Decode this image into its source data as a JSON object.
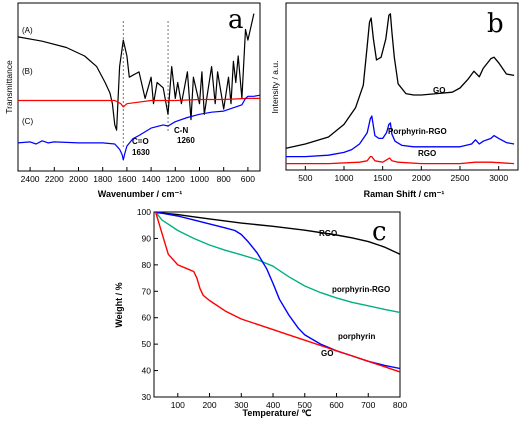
{
  "chart_data": [
    {
      "panel": "a",
      "type": "line",
      "xlabel": "Wavenumber / cm⁻¹",
      "ylabel": "Transmittance",
      "xlim": [
        2500,
        500
      ],
      "x_ticks": [
        2400,
        2200,
        2000,
        1800,
        1600,
        1400,
        1200,
        1000,
        800,
        600
      ],
      "annotations": [
        "C=O",
        "1630",
        "C-N",
        "1260"
      ],
      "series": [
        {
          "name": "(A)",
          "color": "#000000",
          "x": [
            2500,
            2300,
            2100,
            1950,
            1850,
            1780,
            1740,
            1720,
            1700,
            1685,
            1660,
            1630,
            1600,
            1580,
            1500,
            1450,
            1400,
            1380,
            1350,
            1300,
            1260,
            1230,
            1200,
            1180,
            1150,
            1100,
            1070,
            1050,
            1000,
            980,
            960,
            900,
            870,
            850,
            800,
            760,
            740,
            720,
            700,
            680,
            650,
            620,
            600,
            550
          ],
          "y": [
            3.2,
            3.6,
            4.2,
            5.0,
            6.0,
            7.5,
            8.5,
            9.5,
            11.5,
            12.0,
            6.0,
            3.5,
            5.0,
            7.0,
            6.5,
            9.0,
            7.0,
            9.5,
            7.5,
            8.0,
            10.5,
            6.0,
            9.0,
            7.5,
            9.5,
            6.5,
            11.0,
            7.0,
            9.5,
            6.5,
            10.5,
            6.0,
            9.5,
            6.5,
            10.0,
            7.0,
            9.5,
            5.5,
            7.5,
            5.0,
            9.0,
            2.5,
            3.5,
            1.0
          ]
        },
        {
          "name": "(B)",
          "color": "#ff0000",
          "x": [
            2500,
            2000,
            1700,
            1650,
            1630,
            1600,
            1400,
            1200,
            1000,
            800,
            600,
            500
          ],
          "y": [
            9.2,
            9.2,
            9.2,
            9.5,
            9.8,
            9.5,
            9.2,
            9.2,
            9.1,
            9.1,
            9.0,
            9.0
          ]
        },
        {
          "name": "(C)",
          "color": "#0000ff",
          "x": [
            2500,
            2400,
            2350,
            2300,
            2250,
            2200,
            2000,
            1800,
            1700,
            1660,
            1640,
            1630,
            1620,
            1600,
            1550,
            1500,
            1400,
            1300,
            1260,
            1200,
            1100,
            1000,
            900,
            800,
            700,
            650,
            620,
            600,
            550,
            500
          ],
          "y": [
            13.2,
            13.1,
            13.3,
            13.0,
            13.2,
            13.1,
            13.2,
            13.2,
            13.3,
            13.8,
            14.3,
            14.8,
            14.3,
            13.5,
            12.8,
            12.5,
            11.8,
            11.5,
            11.6,
            11.2,
            10.8,
            10.5,
            10.3,
            10.2,
            9.8,
            9.6,
            9.0,
            8.8,
            8.8,
            8.7
          ]
        }
      ]
    },
    {
      "panel": "b",
      "type": "line",
      "xlabel": "Raman Shift / cm⁻¹",
      "ylabel": "Intensity / a.u.",
      "xlim": [
        250,
        3250
      ],
      "x_ticks": [
        500,
        1000,
        1500,
        2000,
        2500,
        3000
      ],
      "series": [
        {
          "name": "GO",
          "color": "#000000",
          "x": [
            250,
            500,
            800,
            1000,
            1150,
            1250,
            1300,
            1330,
            1350,
            1380,
            1420,
            1480,
            1540,
            1580,
            1600,
            1620,
            1650,
            1700,
            1800,
            1900,
            2000,
            2200,
            2400,
            2500,
            2600,
            2680,
            2750,
            2800,
            2900,
            2940,
            3000,
            3100,
            3200
          ],
          "y": [
            0.07,
            0.1,
            0.15,
            0.24,
            0.36,
            0.52,
            0.8,
            0.97,
            1.0,
            0.85,
            0.7,
            0.72,
            0.85,
            1.02,
            1.03,
            0.9,
            0.72,
            0.53,
            0.46,
            0.45,
            0.45,
            0.46,
            0.47,
            0.5,
            0.56,
            0.62,
            0.58,
            0.64,
            0.71,
            0.72,
            0.68,
            0.6,
            0.59
          ]
        },
        {
          "name": "Porphyrin-RGO",
          "color": "#0000ff",
          "x": [
            250,
            500,
            800,
            1000,
            1100,
            1200,
            1300,
            1340,
            1360,
            1400,
            1450,
            1500,
            1550,
            1580,
            1600,
            1620,
            1660,
            1750,
            1900,
            2100,
            2300,
            2500,
            2650,
            2700,
            2750,
            2800,
            2900,
            2940,
            3000,
            3100,
            3200
          ],
          "y": [
            0.01,
            0.01,
            0.02,
            0.04,
            0.06,
            0.1,
            0.18,
            0.28,
            0.3,
            0.16,
            0.14,
            0.14,
            0.18,
            0.24,
            0.25,
            0.17,
            0.12,
            0.09,
            0.08,
            0.08,
            0.08,
            0.08,
            0.1,
            0.13,
            0.1,
            0.12,
            0.14,
            0.16,
            0.14,
            0.11,
            0.1
          ]
        },
        {
          "name": "RGO",
          "color": "#ff0000",
          "x": [
            250,
            800,
            1200,
            1300,
            1340,
            1360,
            1400,
            1500,
            1560,
            1590,
            1620,
            1700,
            2000,
            2500,
            2700,
            2900,
            3200
          ],
          "y": [
            -0.04,
            -0.04,
            -0.03,
            -0.02,
            0.01,
            0.01,
            -0.02,
            -0.03,
            -0.01,
            0.0,
            -0.02,
            -0.03,
            -0.04,
            -0.04,
            -0.03,
            -0.03,
            -0.04
          ]
        }
      ]
    },
    {
      "panel": "c",
      "type": "line",
      "xlabel": "Temperature/ ℃",
      "ylabel": "Weight / %",
      "xlim": [
        25,
        800
      ],
      "ylim": [
        30,
        100
      ],
      "x_ticks": [
        100,
        200,
        300,
        400,
        500,
        600,
        700,
        800
      ],
      "y_ticks": [
        30,
        40,
        50,
        60,
        70,
        80,
        90,
        100
      ],
      "series": [
        {
          "name": "RGO",
          "color": "#000000",
          "x": [
            30,
            100,
            150,
            200,
            300,
            400,
            500,
            600,
            650,
            700,
            750,
            800
          ],
          "y": [
            99.8,
            99.0,
            98.2,
            97.4,
            95.8,
            94.6,
            93.1,
            91.3,
            90.2,
            88.8,
            86.8,
            84.0
          ]
        },
        {
          "name": "porphyrin-RGO",
          "color": "#00b080",
          "x": [
            30,
            50,
            100,
            150,
            200,
            250,
            300,
            350,
            400,
            450,
            500,
            550,
            600,
            650,
            700,
            750,
            800
          ],
          "y": [
            100,
            97.0,
            93.0,
            90.0,
            87.5,
            85.5,
            83.8,
            82.0,
            79.5,
            75.5,
            72.0,
            69.5,
            67.5,
            65.8,
            64.5,
            63.2,
            62.0
          ]
        },
        {
          "name": "porphyrin",
          "color": "#0000ff",
          "x": [
            30,
            100,
            150,
            200,
            250,
            280,
            300,
            320,
            350,
            380,
            400,
            420,
            450,
            480,
            500,
            550,
            600,
            650,
            700,
            750,
            800
          ],
          "y": [
            100,
            98.5,
            97.0,
            95.5,
            94.0,
            93.0,
            91.5,
            89.0,
            84.5,
            78.5,
            73.0,
            67.0,
            61.0,
            56.0,
            53.5,
            50.0,
            47.5,
            45.5,
            43.5,
            42.0,
            40.8
          ]
        },
        {
          "name": "GO",
          "color": "#ff0000",
          "x": [
            30,
            50,
            70,
            100,
            130,
            150,
            160,
            170,
            180,
            200,
            250,
            300,
            350,
            400,
            450,
            500,
            550,
            600,
            650,
            700,
            750,
            800
          ],
          "y": [
            100,
            92.0,
            84.0,
            80.0,
            78.5,
            77.5,
            75.0,
            71.0,
            68.5,
            66.5,
            62.5,
            59.5,
            57.5,
            55.5,
            53.5,
            51.5,
            49.5,
            47.5,
            45.5,
            43.5,
            41.5,
            39.5
          ]
        }
      ]
    }
  ],
  "labels": {
    "panel_a": "a",
    "panel_b": "b",
    "panel_c": "c"
  }
}
